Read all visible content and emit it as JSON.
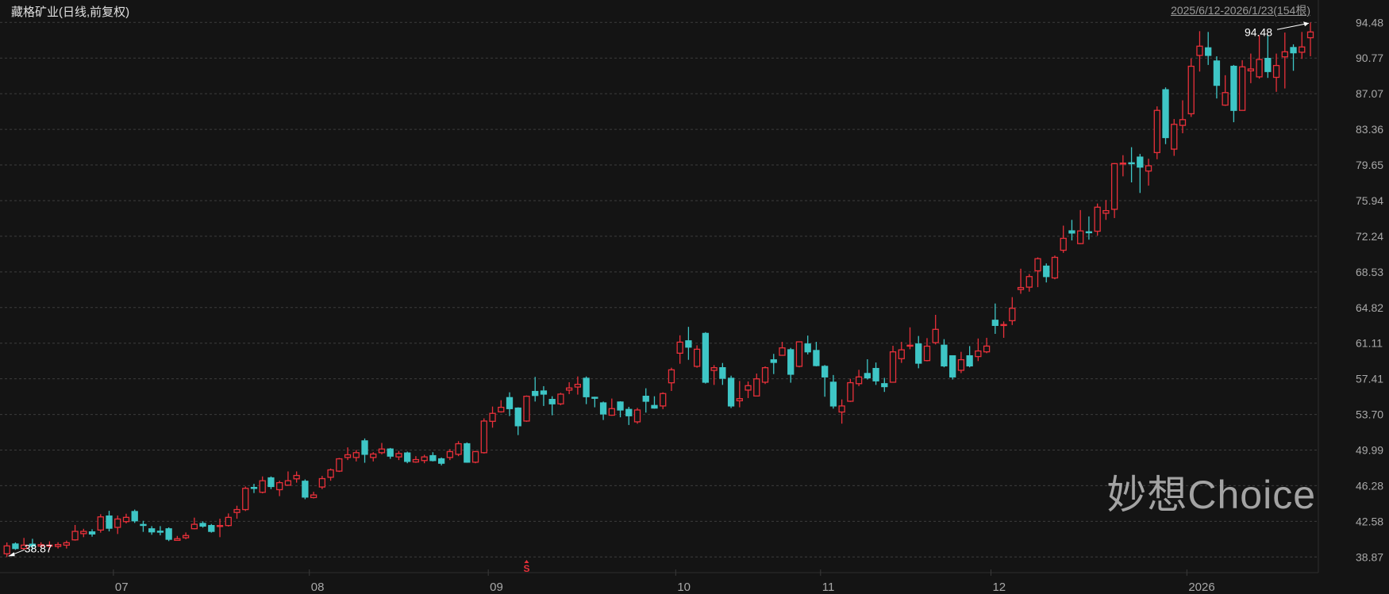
{
  "header": {
    "title": "藏格矿业(日线,前复权)",
    "range": "2025/6/12-2026/1/23(154根)"
  },
  "watermark": "妙想Choice",
  "colors": {
    "background": "#141414",
    "up": "#e8303a",
    "down": "#3ec6c6",
    "grid": "#3c3c3c",
    "axis_text": "#a8a8a8",
    "annotation": "#ffffff"
  },
  "chart_data": {
    "type": "candlestick",
    "title": "藏格矿业(日线,前复权)",
    "count": 154,
    "ohlc_order": [
      "open",
      "high",
      "low",
      "close"
    ],
    "y_ticks": [
      "94.48",
      "90.77",
      "87.07",
      "83.36",
      "79.65",
      "75.94",
      "72.24",
      "68.53",
      "64.82",
      "61.11",
      "57.41",
      "53.70",
      "49.99",
      "46.28",
      "42.58",
      "38.87"
    ],
    "ylim": [
      38.87,
      94.48
    ],
    "grid": true,
    "x_ticks": [
      {
        "label": "07",
        "candle": 13
      },
      {
        "label": "08",
        "candle": 36
      },
      {
        "label": "09",
        "candle": 57
      },
      {
        "label": "10",
        "candle": 79
      },
      {
        "label": "11",
        "candle": 96
      },
      {
        "label": "12",
        "candle": 116
      },
      {
        "label": "2026",
        "candle": 139
      }
    ],
    "annotations": {
      "max": {
        "label": "94.48",
        "candle": 153,
        "value": 94.48
      },
      "min": {
        "label": "38.87",
        "candle": 0,
        "value": 38.87
      },
      "event_marker": {
        "label": "S",
        "candle": 61
      }
    },
    "candles": [
      [
        39.2,
        40.38,
        38.87,
        40.02
      ],
      [
        40.22,
        40.38,
        39.61,
        39.75
      ],
      [
        39.75,
        40.85,
        39.61,
        40.1
      ],
      [
        40.2,
        40.76,
        39.6,
        40.0
      ],
      [
        40.0,
        40.4,
        39.8,
        40.15
      ],
      [
        40.05,
        40.5,
        39.6,
        40.1
      ],
      [
        39.97,
        40.4,
        39.75,
        40.16
      ],
      [
        40.1,
        40.57,
        39.75,
        40.35
      ],
      [
        40.65,
        42.2,
        40.57,
        41.53
      ],
      [
        41.3,
        41.8,
        40.93,
        41.53
      ],
      [
        41.48,
        41.75,
        40.98,
        41.26
      ],
      [
        41.67,
        43.32,
        41.4,
        43.04
      ],
      [
        43.13,
        43.67,
        41.53,
        41.86
      ],
      [
        41.95,
        43.18,
        41.26,
        42.82
      ],
      [
        42.55,
        43.37,
        42.36,
        42.99
      ],
      [
        43.6,
        43.8,
        42.41,
        42.63
      ],
      [
        42.25,
        42.63,
        41.48,
        42.2
      ],
      [
        41.8,
        42.08,
        41.18,
        41.48
      ],
      [
        41.55,
        42.08,
        41.12,
        41.5
      ],
      [
        41.8,
        41.95,
        40.52,
        40.71
      ],
      [
        40.6,
        41.06,
        40.6,
        40.77
      ],
      [
        40.87,
        41.42,
        40.71,
        41.1
      ],
      [
        41.81,
        42.96,
        41.75,
        42.27
      ],
      [
        42.36,
        42.58,
        41.92,
        42.08
      ],
      [
        42.14,
        42.3,
        41.4,
        41.53
      ],
      [
        42.08,
        42.85,
        40.93,
        42.14
      ],
      [
        42.14,
        43.4,
        42.03,
        42.99
      ],
      [
        43.5,
        44.2,
        42.85,
        43.8
      ],
      [
        43.8,
        46.2,
        43.65,
        46.01
      ],
      [
        46.1,
        46.48,
        45.52,
        46.05
      ],
      [
        45.6,
        47.25,
        45.49,
        46.8
      ],
      [
        47.1,
        47.25,
        45.93,
        46.2
      ],
      [
        45.87,
        46.8,
        45.2,
        46.6
      ],
      [
        46.34,
        47.77,
        46.28,
        46.8
      ],
      [
        47.0,
        47.77,
        46.6,
        47.35
      ],
      [
        46.75,
        46.94,
        44.88,
        45.1
      ],
      [
        45.05,
        45.65,
        44.96,
        45.32
      ],
      [
        46.15,
        47.3,
        45.93,
        47.02
      ],
      [
        47.16,
        48.07,
        46.8,
        47.93
      ],
      [
        47.8,
        49.17,
        47.71,
        49.08
      ],
      [
        49.22,
        50.27,
        48.95,
        49.5
      ],
      [
        49.22,
        50.0,
        48.81,
        49.72
      ],
      [
        50.95,
        51.2,
        48.67,
        49.55
      ],
      [
        49.22,
        49.77,
        48.81,
        49.58
      ],
      [
        49.72,
        50.73,
        49.55,
        50.1
      ],
      [
        50.1,
        50.21,
        49.08,
        49.36
      ],
      [
        49.28,
        49.9,
        48.95,
        49.63
      ],
      [
        49.69,
        49.83,
        48.62,
        48.81
      ],
      [
        48.75,
        49.36,
        48.67,
        49.0
      ],
      [
        48.9,
        49.5,
        48.62,
        49.28
      ],
      [
        49.41,
        49.77,
        48.81,
        48.9
      ],
      [
        49.08,
        49.22,
        48.4,
        48.62
      ],
      [
        49.22,
        50.1,
        48.95,
        49.83
      ],
      [
        49.55,
        50.92,
        49.36,
        50.65
      ],
      [
        50.65,
        50.79,
        48.67,
        48.73
      ],
      [
        48.73,
        49.9,
        48.62,
        49.83
      ],
      [
        49.72,
        53.29,
        49.63,
        53.01
      ],
      [
        52.98,
        54.52,
        52.32,
        53.81
      ],
      [
        53.97,
        55.18,
        53.89,
        54.44
      ],
      [
        55.45,
        56.0,
        53.53,
        54.3
      ],
      [
        54.36,
        54.44,
        51.55,
        52.52
      ],
      [
        53.01,
        55.67,
        52.93,
        55.59
      ],
      [
        56.09,
        57.6,
        55.04,
        55.67
      ],
      [
        56.14,
        56.64,
        54.58,
        55.81
      ],
      [
        55.26,
        55.59,
        53.61,
        54.8
      ],
      [
        54.8,
        55.95,
        54.66,
        55.81
      ],
      [
        56.23,
        57.05,
        55.81,
        56.45
      ],
      [
        56.55,
        57.65,
        55.76,
        56.83
      ],
      [
        57.46,
        57.65,
        54.77,
        55.54
      ],
      [
        55.48,
        55.54,
        54.44,
        55.45
      ],
      [
        54.9,
        55.04,
        53.12,
        53.75
      ],
      [
        53.62,
        55.35,
        53.56,
        54.3
      ],
      [
        54.99,
        55.07,
        53.4,
        54.16
      ],
      [
        54.22,
        54.49,
        52.6,
        53.56
      ],
      [
        52.93,
        54.38,
        52.73,
        54.16
      ],
      [
        55.59,
        56.42,
        53.89,
        55.07
      ],
      [
        54.63,
        55.59,
        54.3,
        54.36
      ],
      [
        54.58,
        56.0,
        54.25,
        55.87
      ],
      [
        56.99,
        58.56,
        56.14,
        58.34
      ],
      [
        60.07,
        61.93,
        58.97,
        61.22
      ],
      [
        61.36,
        62.81,
        59.38,
        60.7
      ],
      [
        58.7,
        60.89,
        58.56,
        60.48
      ],
      [
        62.13,
        62.26,
        56.91,
        57.05
      ],
      [
        58.28,
        58.83,
        56.77,
        58.56
      ],
      [
        58.56,
        59.05,
        56.77,
        57.46
      ],
      [
        57.46,
        57.73,
        54.36,
        54.58
      ],
      [
        55.12,
        57.18,
        54.44,
        55.34
      ],
      [
        56.23,
        57.13,
        55.4,
        56.69
      ],
      [
        55.62,
        57.95,
        55.59,
        57.4
      ],
      [
        57.05,
        58.7,
        56.86,
        58.56
      ],
      [
        59.38,
        60.0,
        57.9,
        59.11
      ],
      [
        59.85,
        61.25,
        59.8,
        60.62
      ],
      [
        60.43,
        60.62,
        57.0,
        57.88
      ],
      [
        58.7,
        61.3,
        58.6,
        61.25
      ],
      [
        61.03,
        61.9,
        59.94,
        60.21
      ],
      [
        60.35,
        61.25,
        58.7,
        58.78
      ],
      [
        58.7,
        58.84,
        55.54,
        57.6
      ],
      [
        57.05,
        57.8,
        54.3,
        54.58
      ],
      [
        53.95,
        55.26,
        52.74,
        54.58
      ],
      [
        55.07,
        57.41,
        55.0,
        57.0
      ],
      [
        56.9,
        58.34,
        56.64,
        57.6
      ],
      [
        57.96,
        59.44,
        57.33,
        57.5
      ],
      [
        58.48,
        59.1,
        56.77,
        57.19
      ],
      [
        56.9,
        57.5,
        56.04,
        56.59
      ],
      [
        57.05,
        60.84,
        57.05,
        60.21
      ],
      [
        59.5,
        61.25,
        59.06,
        60.42
      ],
      [
        60.85,
        62.76,
        60.48,
        60.9
      ],
      [
        61.03,
        61.86,
        58.5,
        59.03
      ],
      [
        59.3,
        61.64,
        59.22,
        60.8
      ],
      [
        61.17,
        64.06,
        60.98,
        62.55
      ],
      [
        60.9,
        61.53,
        58.6,
        58.75
      ],
      [
        59.8,
        59.8,
        57.33,
        57.6
      ],
      [
        58.29,
        60.21,
        58.0,
        59.39
      ],
      [
        59.8,
        60.81,
        58.6,
        58.75
      ],
      [
        59.72,
        61.6,
        59.25,
        60.3
      ],
      [
        60.21,
        61.67,
        60.07,
        60.81
      ],
      [
        63.5,
        65.24,
        62.08,
        62.96
      ],
      [
        63.0,
        63.37,
        61.67,
        63.05
      ],
      [
        63.45,
        65.9,
        63.0,
        64.74
      ],
      [
        66.7,
        68.86,
        66.25,
        66.9
      ],
      [
        66.94,
        68.31,
        66.47,
        68.04
      ],
      [
        68.64,
        70.04,
        66.94,
        69.9
      ],
      [
        69.13,
        69.41,
        67.43,
        68.04
      ],
      [
        67.9,
        70.23,
        67.76,
        70.04
      ],
      [
        70.78,
        73.34,
        70.51,
        72.02
      ],
      [
        72.8,
        73.94,
        71.8,
        72.57
      ],
      [
        71.47,
        74.96,
        71.41,
        72.79
      ],
      [
        72.7,
        74.3,
        71.88,
        72.68
      ],
      [
        72.76,
        75.64,
        72.3,
        75.26
      ],
      [
        74.63,
        76.0,
        73.94,
        74.9
      ],
      [
        75.04,
        79.85,
        74.13,
        79.79
      ],
      [
        79.8,
        80.67,
        78.47,
        79.85
      ],
      [
        79.88,
        81.5,
        77.84,
        79.85
      ],
      [
        80.47,
        80.8,
        76.74,
        79.43
      ],
      [
        79.02,
        80.3,
        77.5,
        79.57
      ],
      [
        80.94,
        85.75,
        80.25,
        85.33
      ],
      [
        87.48,
        87.72,
        81.82,
        82.5
      ],
      [
        81.3,
        84.43,
        80.6,
        83.88
      ],
      [
        83.77,
        86.38,
        82.95,
        84.37
      ],
      [
        84.98,
        90.74,
        84.65,
        89.92
      ],
      [
        91.05,
        93.57,
        89.37,
        92.01
      ],
      [
        91.84,
        93.49,
        90.06,
        91.05
      ],
      [
        90.47,
        90.96,
        86.57,
        87.94
      ],
      [
        85.88,
        88.99,
        85.8,
        87.18
      ],
      [
        89.92,
        90.06,
        84.1,
        85.33
      ],
      [
        85.33,
        90.55,
        85.33,
        89.86
      ],
      [
        89.45,
        91.24,
        88.16,
        89.64
      ],
      [
        88.82,
        93.16,
        88.63,
        90.63
      ],
      [
        90.74,
        93.16,
        88.71,
        89.37
      ],
      [
        88.77,
        91.24,
        87.26,
        90.0
      ],
      [
        90.9,
        93.43,
        87.61,
        91.43
      ],
      [
        91.87,
        92.2,
        89.45,
        91.32
      ],
      [
        91.38,
        93.49,
        90.69,
        91.93
      ],
      [
        92.89,
        94.48,
        90.96,
        93.49
      ]
    ]
  }
}
